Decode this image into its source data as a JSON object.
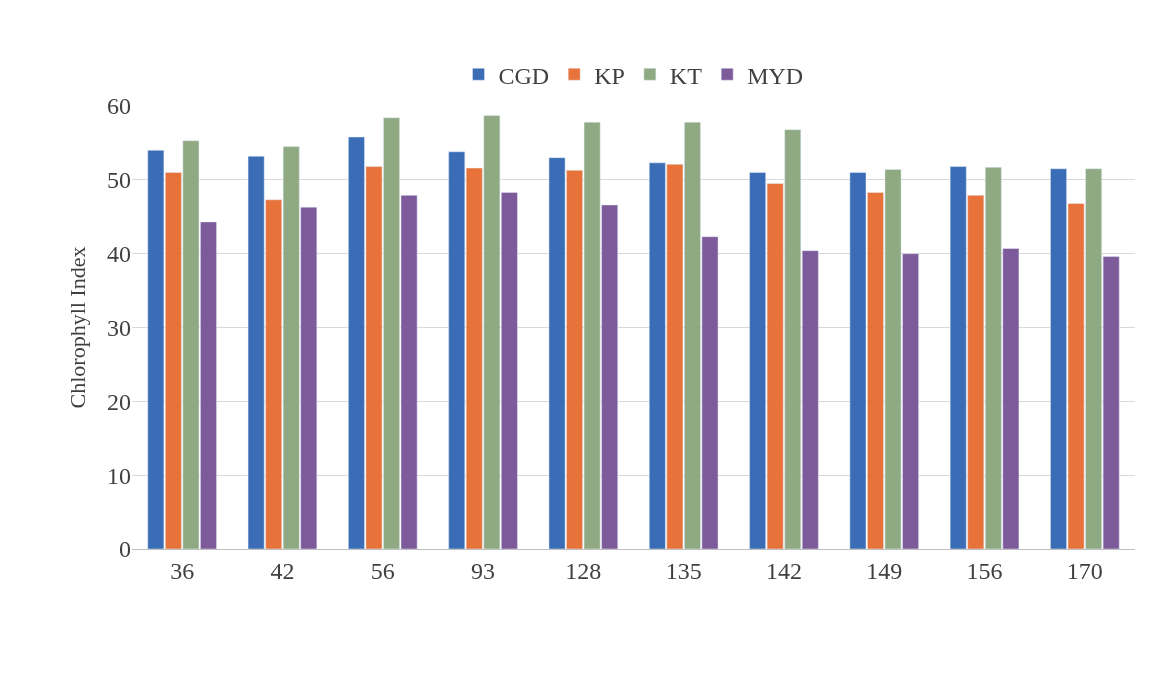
{
  "chart_data": {
    "type": "bar",
    "ylabel": "Chlorophyll Index",
    "categories": [
      "36",
      "42",
      "56",
      "93",
      "128",
      "135",
      "142",
      "149",
      "156",
      "170"
    ],
    "series": [
      {
        "name": "CGD",
        "color": "#3a6db5",
        "values": [
          54.0,
          53.2,
          55.8,
          53.8,
          53.0,
          52.3,
          51.0,
          51.0,
          51.8,
          51.5
        ]
      },
      {
        "name": "KP",
        "color": "#e8733a",
        "values": [
          51.0,
          47.3,
          51.8,
          51.6,
          51.3,
          52.1,
          49.5,
          48.3,
          47.9,
          46.8
        ]
      },
      {
        "name": "KT",
        "color": "#8faa82",
        "values": [
          55.3,
          54.5,
          58.4,
          58.7,
          57.8,
          57.8,
          56.8,
          51.4,
          51.7,
          51.5
        ]
      },
      {
        "name": "MYD",
        "color": "#7d5a9a",
        "values": [
          44.3,
          46.3,
          47.9,
          48.3,
          46.6,
          42.3,
          40.4,
          40.0,
          40.7,
          39.6
        ]
      }
    ],
    "ylim": [
      0,
      60
    ],
    "yticks": [
      0,
      10,
      20,
      30,
      40,
      50,
      60
    ],
    "grid": "y",
    "legend": "top"
  }
}
